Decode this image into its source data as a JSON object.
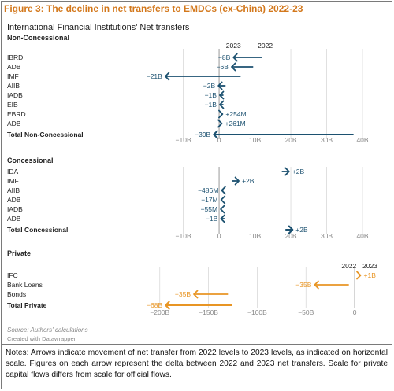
{
  "figure_title": "Figure 3: The decline in net transfers to EMDCs (ex-China) 2022-23",
  "notes": "Notes: Arrows indicate movement of net transfer from 2022 levels to 2023 levels, as indicated on horizontal scale. Figures on each arrow represent the delta between 2022 and 2023 net transfers. Scale for private capital flows differs from scale for official flows.",
  "colors": {
    "official": "#1c5170",
    "private": "#e89524",
    "title": "#d3781c",
    "grid": "#d9d9d9",
    "zero": "#999999"
  },
  "chart_data": [
    {
      "type": "arrow",
      "title": "International Financial Institutions' Net transfers",
      "section": "Non-Concessional",
      "year_labels": [
        "2023",
        "2022"
      ],
      "xlim": [
        -22,
        40
      ],
      "xticks": [
        -10,
        0,
        10,
        20,
        30,
        40
      ],
      "xtick_labels": [
        "−10B",
        "0",
        "10B",
        "20B",
        "30B",
        "40B"
      ],
      "series": [
        {
          "category": "IBRD",
          "v2022": 12,
          "v2023": 4,
          "label": "−8B"
        },
        {
          "category": "ADB",
          "v2022": 9.5,
          "v2023": 3.5,
          "label": "−6B"
        },
        {
          "category": "IMF",
          "v2022": 6,
          "v2023": -15,
          "label": "−21B"
        },
        {
          "category": "AIIB",
          "v2022": 1.8,
          "v2023": -0.2,
          "label": "−2B"
        },
        {
          "category": "IADB",
          "v2022": 1.2,
          "v2023": 0.2,
          "label": "−1B"
        },
        {
          "category": "EIB",
          "v2022": 1.2,
          "v2023": 0.2,
          "label": "−1B"
        },
        {
          "category": "EBRD",
          "v2022": 0.7,
          "v2023": 0.954,
          "label": "+254M"
        },
        {
          "category": "ADB",
          "v2022": 0.5,
          "v2023": 0.761,
          "label": "+261M"
        },
        {
          "category": "Total Non-Concessional",
          "v2022": 37.5,
          "v2023": -1.5,
          "label": "−39B",
          "bold": true
        }
      ]
    },
    {
      "type": "arrow",
      "section": "Concessional",
      "xlim": [
        -22,
        40
      ],
      "xticks": [
        -10,
        0,
        10,
        20,
        30,
        40
      ],
      "xtick_labels": [
        "−10B",
        "0",
        "10B",
        "20B",
        "30B",
        "40B"
      ],
      "series": [
        {
          "category": "IDA",
          "v2022": 17.5,
          "v2023": 19.5,
          "label": "+2B"
        },
        {
          "category": "IMF",
          "v2022": 3.5,
          "v2023": 5.5,
          "label": "+2B"
        },
        {
          "category": "AIIB",
          "v2022": 1.2,
          "v2023": 0.714,
          "label": "−486M"
        },
        {
          "category": "ADB",
          "v2022": 0.6,
          "v2023": 0.583,
          "label": "−17M"
        },
        {
          "category": "IADB",
          "v2022": 0.5,
          "v2023": 0.445,
          "label": "−55M"
        },
        {
          "category": "ADB",
          "v2022": 1.5,
          "v2023": 0.5,
          "label": "−1B"
        },
        {
          "category": "Total Concessional",
          "v2022": 18.5,
          "v2023": 20.5,
          "label": "+2B",
          "bold": true
        }
      ]
    },
    {
      "type": "arrow",
      "section": "Private",
      "year_labels": [
        "2022",
        "2023"
      ],
      "xlim": [
        -220,
        8
      ],
      "xticks": [
        -200,
        -150,
        -100,
        -50,
        0
      ],
      "xtick_labels": [
        "−200B",
        "−150B",
        "−100B",
        "−50B",
        "0"
      ],
      "series": [
        {
          "category": "IFC",
          "v2022": 5,
          "v2023": 6,
          "label": "+1B"
        },
        {
          "category": "Bank Loans",
          "v2022": -6,
          "v2023": -41,
          "label": "−35B"
        },
        {
          "category": "Bonds",
          "v2022": -130,
          "v2023": -165,
          "label": "−35B"
        },
        {
          "category": "Total Private",
          "v2022": -126,
          "v2023": -194,
          "label": "−68B",
          "bold": true
        }
      ]
    }
  ],
  "source": "Source: Authors' calculations",
  "credit": "Created with Datawrapper"
}
